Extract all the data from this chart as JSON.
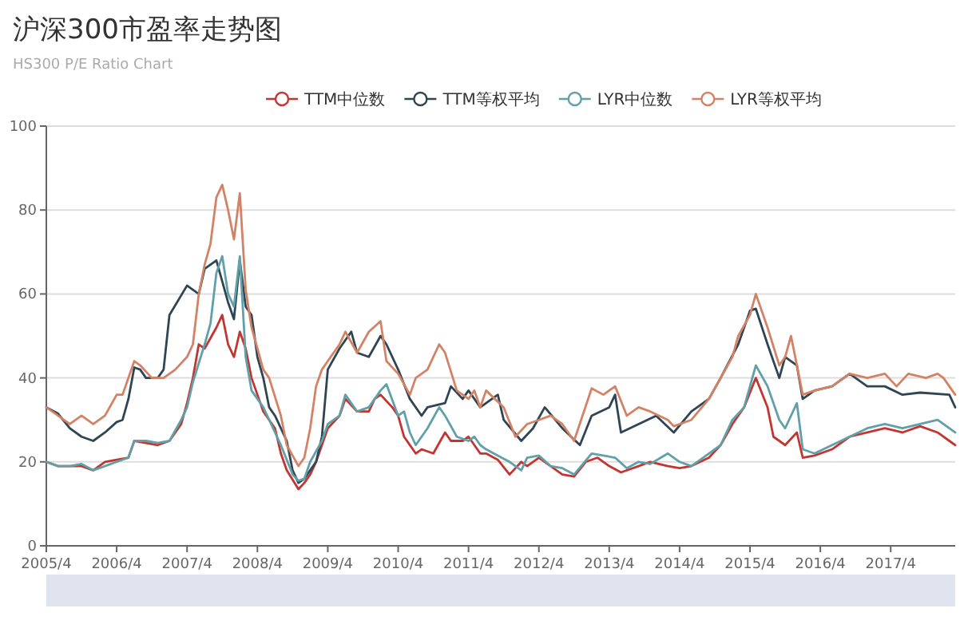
{
  "chart_data": {
    "type": "line",
    "title": "沪深300市盈率走势图",
    "subtitle": "HS300 P/E Ratio Chart",
    "xlim": [
      "2005-04",
      "2018-03"
    ],
    "ylim": [
      0,
      100
    ],
    "yticks": [
      0,
      20,
      40,
      60,
      80,
      100
    ],
    "xticks": [
      {
        "value": "2005-04",
        "label": "2005/4"
      },
      {
        "value": "2006-04",
        "label": "2006/4"
      },
      {
        "value": "2007-04",
        "label": "2007/4"
      },
      {
        "value": "2008-04",
        "label": "2008/4"
      },
      {
        "value": "2009-04",
        "label": "2009/4"
      },
      {
        "value": "2010-04",
        "label": "2010/4"
      },
      {
        "value": "2011-04",
        "label": "2011/4"
      },
      {
        "value": "2012-04",
        "label": "2012/4"
      },
      {
        "value": "2013-04",
        "label": "2013/4"
      },
      {
        "value": "2014-04",
        "label": "2014/4"
      },
      {
        "value": "2015-04",
        "label": "2015/4"
      },
      {
        "value": "2016-04",
        "label": "2016/4"
      },
      {
        "value": "2017-04",
        "label": "2017/4"
      }
    ],
    "grid": "y",
    "legend": "top",
    "series": [
      {
        "name": "TTM中位数",
        "color": "#c23531",
        "x": [
          "2005-04",
          "2005-06",
          "2005-08",
          "2005-10",
          "2005-12",
          "2006-02",
          "2006-04",
          "2006-06",
          "2006-07",
          "2006-09",
          "2006-11",
          "2007-01",
          "2007-03",
          "2007-04",
          "2007-05",
          "2007-06",
          "2007-07",
          "2007-09",
          "2007-10",
          "2007-11",
          "2007-12",
          "2008-01",
          "2008-02",
          "2008-03",
          "2008-04",
          "2008-05",
          "2008-07",
          "2008-08",
          "2008-09",
          "2008-11",
          "2008-12",
          "2009-01",
          "2009-02",
          "2009-03",
          "2009-04",
          "2009-06",
          "2009-07",
          "2009-09",
          "2009-11",
          "2009-12",
          "2010-01",
          "2010-03",
          "2010-04",
          "2010-05",
          "2010-07",
          "2010-08",
          "2010-10",
          "2010-12",
          "2011-01",
          "2011-03",
          "2011-04",
          "2011-06",
          "2011-07",
          "2011-09",
          "2011-11",
          "2012-01",
          "2012-02",
          "2012-04",
          "2012-06",
          "2012-08",
          "2012-10",
          "2012-12",
          "2013-02",
          "2013-04",
          "2013-06",
          "2013-09",
          "2013-11",
          "2014-02",
          "2014-04",
          "2014-06",
          "2014-09",
          "2014-11",
          "2015-01",
          "2015-03",
          "2015-05",
          "2015-07",
          "2015-08",
          "2015-10",
          "2015-12",
          "2016-01",
          "2016-03",
          "2016-06",
          "2016-09",
          "2016-12",
          "2017-03",
          "2017-06",
          "2017-09",
          "2017-12",
          "2018-02",
          "2018-03"
        ],
        "values": [
          20,
          19,
          19,
          19,
          18,
          20,
          20.5,
          21,
          25,
          24.5,
          24,
          25,
          29,
          34,
          40,
          48,
          47,
          52,
          55,
          48,
          45,
          51,
          47,
          40,
          36,
          32,
          28,
          22,
          18,
          13.5,
          15,
          17,
          20,
          24,
          28,
          31,
          35,
          32,
          32,
          35,
          36,
          33,
          31,
          26,
          22,
          23,
          22,
          27,
          25,
          25,
          26,
          22,
          22,
          20.5,
          17,
          20,
          19,
          21,
          19,
          17,
          16.5,
          20,
          21,
          19,
          17.5,
          19,
          20,
          19,
          18.5,
          19,
          21,
          24,
          29,
          33,
          40,
          33,
          26,
          24,
          27,
          21,
          21.5,
          23,
          26,
          27,
          28,
          27,
          28.5,
          27,
          25,
          24
        ]
      },
      {
        "name": "TTM等权平均",
        "color": "#2f4554",
        "x": [
          "2005-04",
          "2005-06",
          "2005-08",
          "2005-10",
          "2005-12",
          "2006-02",
          "2006-04",
          "2006-05",
          "2006-06",
          "2006-07",
          "2006-08",
          "2006-09",
          "2006-11",
          "2006-12",
          "2007-01",
          "2007-04",
          "2007-06",
          "2007-07",
          "2007-09",
          "2007-11",
          "2007-12",
          "2008-01",
          "2008-02",
          "2008-03",
          "2008-04",
          "2008-05",
          "2008-06",
          "2008-07",
          "2008-09",
          "2008-10",
          "2008-11",
          "2008-12",
          "2009-02",
          "2009-03",
          "2009-04",
          "2009-06",
          "2009-08",
          "2009-09",
          "2009-11",
          "2010-01",
          "2010-02",
          "2010-04",
          "2010-06",
          "2010-08",
          "2010-09",
          "2010-12",
          "2011-01",
          "2011-03",
          "2011-04",
          "2011-06",
          "2011-09",
          "2011-10",
          "2012-01",
          "2012-03",
          "2012-05",
          "2012-08",
          "2012-11",
          "2013-01",
          "2013-04",
          "2013-05",
          "2013-06",
          "2013-09",
          "2013-12",
          "2014-03",
          "2014-06",
          "2014-09",
          "2014-11",
          "2015-02",
          "2015-04",
          "2015-05",
          "2015-07",
          "2015-09",
          "2015-10",
          "2015-12",
          "2016-01",
          "2016-03",
          "2016-06",
          "2016-09",
          "2016-12",
          "2017-03",
          "2017-06",
          "2017-09",
          "2018-02",
          "2018-03"
        ],
        "values": [
          33,
          31.5,
          28,
          26,
          25,
          27,
          29.5,
          30,
          35,
          42.5,
          42,
          40,
          40,
          42,
          55,
          62,
          60,
          66,
          68,
          58,
          54,
          68,
          57,
          55,
          45,
          40,
          33,
          31,
          25,
          18,
          15,
          16,
          20,
          26,
          42,
          47,
          51,
          46,
          45,
          50,
          48,
          42,
          35,
          31,
          33,
          34,
          38,
          35,
          37,
          33,
          36,
          30,
          25,
          28,
          33,
          28,
          24,
          31,
          33,
          36,
          27,
          29,
          31,
          27,
          32,
          35,
          40,
          48,
          56,
          56.5,
          48,
          40,
          45,
          43,
          35,
          37,
          38,
          41,
          38,
          38,
          36,
          36.5,
          36,
          33
        ]
      },
      {
        "name": "LYR中位数",
        "color": "#61a0a8",
        "x": [
          "2005-04",
          "2005-06",
          "2005-08",
          "2005-10",
          "2005-12",
          "2006-02",
          "2006-04",
          "2006-06",
          "2006-07",
          "2006-09",
          "2006-11",
          "2007-01",
          "2007-03",
          "2007-04",
          "2007-05",
          "2007-07",
          "2007-08",
          "2007-09",
          "2007-10",
          "2007-11",
          "2007-12",
          "2008-01",
          "2008-02",
          "2008-03",
          "2008-05",
          "2008-06",
          "2008-08",
          "2008-10",
          "2008-11",
          "2008-12",
          "2009-01",
          "2009-03",
          "2009-04",
          "2009-06",
          "2009-07",
          "2009-09",
          "2009-11",
          "2010-01",
          "2010-02",
          "2010-04",
          "2010-05",
          "2010-06",
          "2010-07",
          "2010-09",
          "2010-11",
          "2010-12",
          "2011-02",
          "2011-04",
          "2011-05",
          "2011-06",
          "2011-07",
          "2011-09",
          "2011-11",
          "2012-01",
          "2012-02",
          "2012-04",
          "2012-06",
          "2012-08",
          "2012-10",
          "2013-01",
          "2013-03",
          "2013-05",
          "2013-07",
          "2013-09",
          "2013-11",
          "2014-02",
          "2014-04",
          "2014-06",
          "2014-09",
          "2014-11",
          "2015-01",
          "2015-03",
          "2015-05",
          "2015-07",
          "2015-09",
          "2015-10",
          "2015-12",
          "2016-01",
          "2016-03",
          "2016-06",
          "2016-09",
          "2016-12",
          "2017-03",
          "2017-06",
          "2017-09",
          "2017-12",
          "2018-02",
          "2018-03"
        ],
        "values": [
          20,
          19,
          19,
          19.5,
          18,
          19,
          20,
          21,
          25,
          25,
          24.5,
          25,
          30,
          33,
          39,
          48,
          53,
          65,
          69,
          60,
          57,
          69,
          45,
          37,
          33,
          30,
          24,
          17,
          15.5,
          16,
          20,
          25,
          29,
          31,
          36,
          32,
          33,
          37,
          38.5,
          31,
          32,
          27,
          24,
          28,
          33,
          31,
          26,
          25,
          26,
          24,
          23,
          21.5,
          20,
          18,
          21,
          21.5,
          19,
          18.5,
          17,
          22,
          21.5,
          21,
          18.5,
          20,
          19.5,
          22,
          20,
          19,
          22,
          24,
          30,
          33,
          43,
          38,
          30,
          28,
          34,
          23,
          22,
          24,
          26,
          28,
          29,
          28,
          29,
          30,
          28,
          27
        ]
      },
      {
        "name": "LYR等权平均",
        "color": "#d48265",
        "x": [
          "2005-04",
          "2005-06",
          "2005-08",
          "2005-10",
          "2005-12",
          "2006-02",
          "2006-04",
          "2006-05",
          "2006-07",
          "2006-08",
          "2006-10",
          "2006-12",
          "2007-02",
          "2007-04",
          "2007-05",
          "2007-06",
          "2007-07",
          "2007-08",
          "2007-09",
          "2007-10",
          "2007-11",
          "2007-12",
          "2008-01",
          "2008-02",
          "2008-03",
          "2008-05",
          "2008-06",
          "2008-08",
          "2008-09",
          "2008-11",
          "2008-12",
          "2009-01",
          "2009-02",
          "2009-03",
          "2009-04",
          "2009-06",
          "2009-07",
          "2009-09",
          "2009-11",
          "2010-01",
          "2010-02",
          "2010-04",
          "2010-06",
          "2010-07",
          "2010-09",
          "2010-11",
          "2010-12",
          "2011-02",
          "2011-04",
          "2011-05",
          "2011-06",
          "2011-07",
          "2011-10",
          "2011-12",
          "2012-02",
          "2012-04",
          "2012-06",
          "2012-08",
          "2012-10",
          "2013-01",
          "2013-03",
          "2013-05",
          "2013-07",
          "2013-09",
          "2013-11",
          "2014-02",
          "2014-03",
          "2014-06",
          "2014-09",
          "2014-11",
          "2015-01",
          "2015-02",
          "2015-04",
          "2015-05",
          "2015-07",
          "2015-09",
          "2015-10",
          "2015-11",
          "2016-01",
          "2016-03",
          "2016-06",
          "2016-09",
          "2016-12",
          "2017-03",
          "2017-05",
          "2017-07",
          "2017-10",
          "2017-12",
          "2018-01",
          "2018-03"
        ],
        "values": [
          33,
          31,
          29,
          31,
          29,
          31,
          36,
          36,
          44,
          43,
          40,
          40,
          42,
          45,
          48,
          60,
          67,
          72,
          83,
          86,
          80,
          73,
          84,
          61,
          52,
          42,
          40,
          31,
          24,
          19,
          21,
          28,
          38,
          42,
          44,
          48,
          51,
          46,
          51,
          53.5,
          44,
          41,
          36,
          40,
          42,
          48,
          46,
          37,
          35,
          37,
          33,
          37,
          33,
          26,
          29,
          30,
          31,
          29,
          25,
          37.5,
          36,
          38,
          31,
          33,
          32,
          30,
          28.5,
          30,
          35,
          40,
          45,
          50,
          55,
          60,
          52,
          43,
          45,
          50,
          36,
          37,
          38,
          41,
          40,
          41,
          38,
          41,
          40,
          41,
          40,
          36
        ]
      }
    ]
  }
}
